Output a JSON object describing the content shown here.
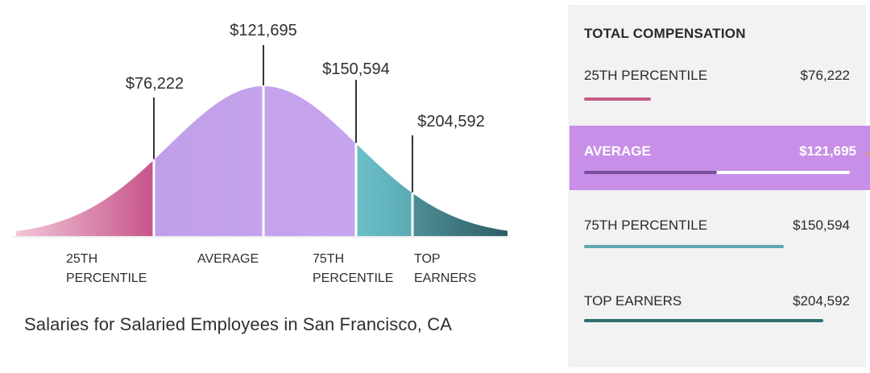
{
  "chart_data": {
    "type": "area",
    "title": "Salaries for Salaried Employees in San Francisco, CA",
    "markers": [
      {
        "label": "$76,222",
        "value": 76222
      },
      {
        "label": "$121,695",
        "value": 121695
      },
      {
        "label": "$150,594",
        "value": 150594
      },
      {
        "label": "$204,592",
        "value": 204592
      }
    ],
    "segments": [
      {
        "name": "25TH PERCENTILE",
        "lines": [
          "25TH",
          "PERCENTILE"
        ],
        "color": "#cc6e98"
      },
      {
        "name": "AVERAGE",
        "lines": [
          "AVERAGE"
        ],
        "color": "#c4a3ec"
      },
      {
        "name": "75TH PERCENTILE",
        "lines": [
          "75TH",
          "PERCENTILE"
        ],
        "color": "#5fb6bf"
      },
      {
        "name": "TOP EARNERS",
        "lines": [
          "TOP",
          "EARNERS"
        ],
        "color": "#3f7d86"
      }
    ]
  },
  "caption": "Salaries for Salaried Employees in San Francisco, CA",
  "panel": {
    "title": "TOTAL COMPENSATION",
    "rows": [
      {
        "label": "25TH PERCENTILE",
        "value": "$76,222",
        "fill": 0.25,
        "color": "#c45a88",
        "track": "transparent"
      },
      {
        "label": "AVERAGE",
        "value": "$121,695",
        "fill": 0.5,
        "color": "#7a4e9e",
        "track": "#ffffff"
      },
      {
        "label": "75TH PERCENTILE",
        "value": "$150,594",
        "fill": 0.75,
        "color": "#5fa8b0",
        "track": "transparent"
      },
      {
        "label": "TOP EARNERS",
        "value": "$204,592",
        "fill": 0.9,
        "color": "#2f6e6e",
        "track": "transparent"
      }
    ]
  }
}
